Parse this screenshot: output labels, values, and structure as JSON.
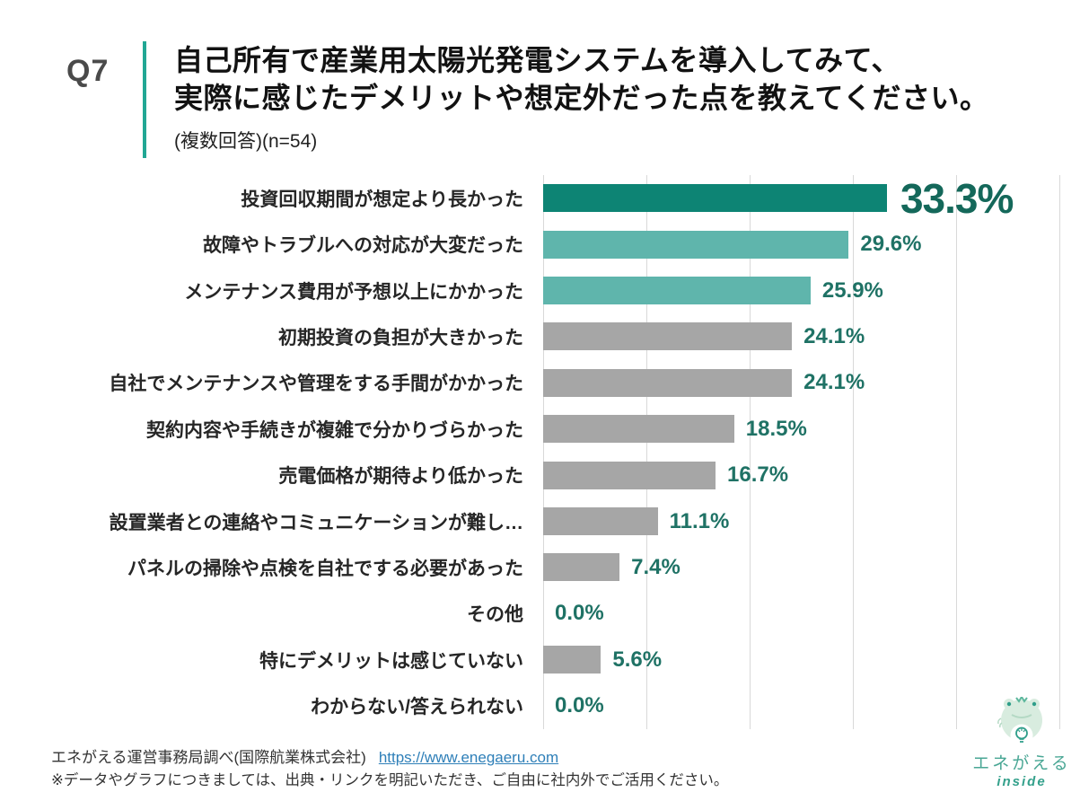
{
  "header": {
    "question_no": "Q7",
    "title_line1": "自己所有で産業用太陽光発電システムを導入してみて、",
    "title_line2": "実際に感じたデメリットや想定外だった点を教えてください。",
    "subtitle": "(複数回答)(n=54)"
  },
  "chart_data": {
    "type": "bar",
    "orientation": "horizontal",
    "title": "自己所有で産業用太陽光発電システムを導入して実際に感じたデメリット・想定外だった点",
    "n_label": "n=54",
    "xlabel": "",
    "ylabel": "",
    "xlim": [
      0,
      50
    ],
    "gridline_step": 10,
    "grid": true,
    "legend": "none",
    "categories": [
      "投資回収期間が想定より長かった",
      "故障やトラブルへの対応が大変だった",
      "メンテナンス費用が予想以上にかかった",
      "初期投資の負担が大きかった",
      "自社でメンテナンスや管理をする手間がかかった",
      "契約内容や手続きが複雑で分かりづらかった",
      "売電価格が期待より低かった",
      "設置業者との連絡やコミュニケーションが難し…",
      "パネルの掃除や点検を自社でする必要があった",
      "その他",
      "特にデメリットは感じていない",
      "わからない/答えられない"
    ],
    "values": [
      33.3,
      29.6,
      25.9,
      24.1,
      24.1,
      18.5,
      16.7,
      11.1,
      7.4,
      0.0,
      5.6,
      0.0
    ],
    "value_labels": [
      "33.3%",
      "29.6%",
      "25.9%",
      "24.1%",
      "24.1%",
      "18.5%",
      "16.7%",
      "11.1%",
      "7.4%",
      "0.0%",
      "5.6%",
      "0.0%"
    ],
    "emphasized_row": 0,
    "bar_colors": [
      "#0d8474",
      "#5fb5ac",
      "#5fb5ac",
      "#a6a6a6",
      "#a6a6a6",
      "#a6a6a6",
      "#a6a6a6",
      "#a6a6a6",
      "#a6a6a6",
      "#a6a6a6",
      "#a6a6a6",
      "#a6a6a6"
    ],
    "colors": {
      "accent_dark": "#0d8474",
      "accent_light": "#5fb5ac",
      "neutral_bar": "#a6a6a6",
      "value_text": "#1f7265",
      "value_text_emphasis": "#14685a",
      "divider": "#21a794",
      "gridline": "#d9d9d9"
    }
  },
  "footer": {
    "source_text": "エネがえる運営事務局調べ(国際航業株式会社)",
    "link_text": "https://www.enegaeru.com",
    "note": "※データやグラフにつきましては、出典・リンクを明記いただき、ご自由に社内外でご活用ください。"
  },
  "logo": {
    "name": "エネがえる",
    "sub": "inside"
  }
}
